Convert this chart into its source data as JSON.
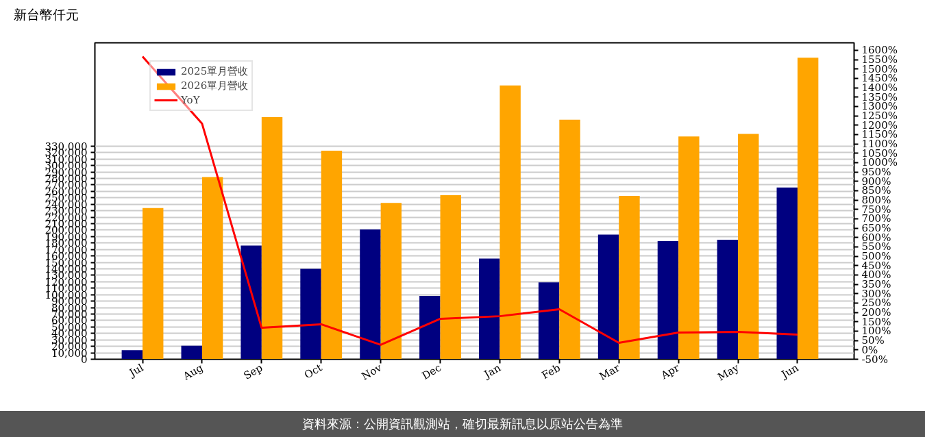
{
  "chart_data": {
    "type": "bar",
    "ylabel": "新台幣仟元",
    "categories": [
      "Jul",
      "Aug",
      "Sep",
      "Oct",
      "Nov",
      "Dec",
      "Jan",
      "Feb",
      "Mar",
      "Apr",
      "May",
      "Jun"
    ],
    "series": [
      {
        "name": "2025單月營收",
        "color": "#000080",
        "values": [
          14000,
          21000,
          176000,
          140000,
          201000,
          98000,
          156000,
          119000,
          193000,
          183000,
          185000,
          266000
        ]
      },
      {
        "name": "2026單月營收",
        "color": "#ffa500",
        "values": [
          234000,
          282000,
          375000,
          323000,
          242000,
          254000,
          424000,
          371000,
          253000,
          345000,
          349000,
          467000
        ]
      },
      {
        "name": "YoY",
        "type": "line",
        "axis": "y2",
        "color": "#ff0000",
        "line_style": "solid",
        "values": [
          1567,
          1208,
          118,
          137,
          27,
          166,
          180,
          217,
          38,
          93,
          96,
          82
        ]
      }
    ],
    "ylim": [
      0,
      490000
    ],
    "yticks": [
      {
        "value": 0,
        "label": "0"
      },
      {
        "value": 10000,
        "label": "10,000"
      },
      {
        "value": 20000,
        "label": "20,000"
      },
      {
        "value": 30000,
        "label": "30,000"
      },
      {
        "value": 40000,
        "label": "40,000"
      },
      {
        "value": 50000,
        "label": "50,000"
      },
      {
        "value": 60000,
        "label": "60,000"
      },
      {
        "value": 70000,
        "label": "70,000"
      },
      {
        "value": 80000,
        "label": "80,000"
      },
      {
        "value": 90000,
        "label": "90,000"
      },
      {
        "value": 100000,
        "label": "100,000"
      },
      {
        "value": 110000,
        "label": "110,000"
      },
      {
        "value": 120000,
        "label": "120,000"
      },
      {
        "value": 130000,
        "label": "130,000"
      },
      {
        "value": 140000,
        "label": "140,000"
      },
      {
        "value": 150000,
        "label": "150,000"
      },
      {
        "value": 160000,
        "label": "160,000"
      },
      {
        "value": 170000,
        "label": "170,000"
      },
      {
        "value": 180000,
        "label": "180,000"
      },
      {
        "value": 190000,
        "label": "190,000"
      },
      {
        "value": 200000,
        "label": "200,000"
      },
      {
        "value": 210000,
        "label": "210,000"
      },
      {
        "value": 220000,
        "label": "220,000"
      },
      {
        "value": 230000,
        "label": "230,000"
      },
      {
        "value": 240000,
        "label": "240,000"
      },
      {
        "value": 250000,
        "label": "250,000"
      },
      {
        "value": 260000,
        "label": "260,000"
      },
      {
        "value": 270000,
        "label": "270,000"
      },
      {
        "value": 280000,
        "label": "280,000"
      },
      {
        "value": 290000,
        "label": "290,000"
      },
      {
        "value": 300000,
        "label": "300,000"
      },
      {
        "value": 310000,
        "label": "310,000"
      },
      {
        "value": 320000,
        "label": "320,000"
      },
      {
        "value": 330000,
        "label": "330,000"
      }
    ],
    "y2lim": [
      -50,
      1640
    ],
    "y2ticks": [
      {
        "value": -50,
        "label": "-50%"
      },
      {
        "value": 0,
        "label": "0%"
      },
      {
        "value": 50,
        "label": "50%"
      },
      {
        "value": 100,
        "label": "100%"
      },
      {
        "value": 150,
        "label": "150%"
      },
      {
        "value": 200,
        "label": "200%"
      },
      {
        "value": 250,
        "label": "250%"
      },
      {
        "value": 300,
        "label": "300%"
      },
      {
        "value": 350,
        "label": "350%"
      },
      {
        "value": 400,
        "label": "400%"
      },
      {
        "value": 450,
        "label": "450%"
      },
      {
        "value": 500,
        "label": "500%"
      },
      {
        "value": 550,
        "label": "550%"
      },
      {
        "value": 600,
        "label": "600%"
      },
      {
        "value": 650,
        "label": "650%"
      },
      {
        "value": 700,
        "label": "700%"
      },
      {
        "value": 750,
        "label": "750%"
      },
      {
        "value": 800,
        "label": "800%"
      },
      {
        "value": 850,
        "label": "850%"
      },
      {
        "value": 900,
        "label": "900%"
      },
      {
        "value": 950,
        "label": "950%"
      },
      {
        "value": 1000,
        "label": "1000%"
      },
      {
        "value": 1050,
        "label": "1050%"
      },
      {
        "value": 1100,
        "label": "1100%"
      },
      {
        "value": 1150,
        "label": "1150%"
      },
      {
        "value": 1200,
        "label": "1200%"
      },
      {
        "value": 1250,
        "label": "1250%"
      },
      {
        "value": 1300,
        "label": "1300%"
      },
      {
        "value": 1350,
        "label": "1350%"
      },
      {
        "value": 1400,
        "label": "1400%"
      },
      {
        "value": 1450,
        "label": "1450%"
      },
      {
        "value": 1500,
        "label": "1500%"
      },
      {
        "value": 1550,
        "label": "1550%"
      },
      {
        "value": 1600,
        "label": "1600%"
      }
    ],
    "grid": "y",
    "legend": "top left",
    "marker": "none",
    "annotations": [
      "資料來源：公開資訊觀測站，確切最新訊息以原站公告為準"
    ]
  }
}
